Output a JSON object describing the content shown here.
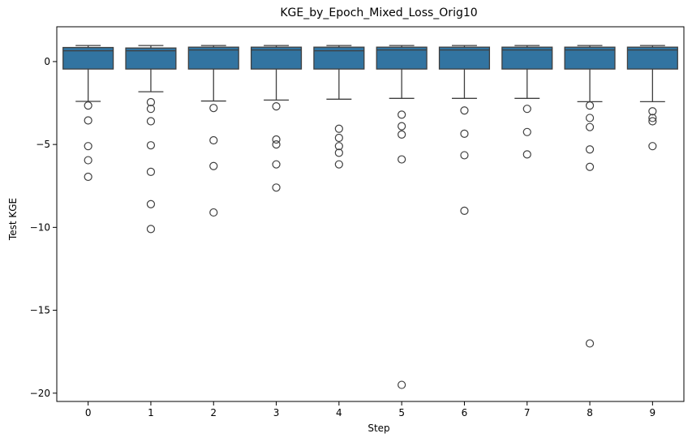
{
  "chart_data": {
    "type": "box",
    "title": "KGE_by_Epoch_Mixed_Loss_Orig10",
    "xlabel": "Step",
    "ylabel": "Test KGE",
    "categories": [
      "0",
      "1",
      "2",
      "3",
      "4",
      "5",
      "6",
      "7",
      "8",
      "9"
    ],
    "ylim": [
      -20.5,
      2.1
    ],
    "yticks": [
      {
        "value": 0,
        "label": "0"
      },
      {
        "value": -5,
        "label": "−5"
      },
      {
        "value": -10,
        "label": "−10"
      },
      {
        "value": -15,
        "label": "−15"
      },
      {
        "value": -20,
        "label": "−20"
      }
    ],
    "grid": false,
    "box_color": "#3274a1",
    "edge_color": "#3f3f3f",
    "boxes": [
      {
        "category": "0",
        "whisker_low": -2.4,
        "q1": -0.45,
        "median": 0.65,
        "q3": 0.85,
        "whisker_high": 0.97,
        "outliers": [
          -2.65,
          -3.55,
          -5.1,
          -5.95,
          -6.95
        ]
      },
      {
        "category": "1",
        "whisker_low": -1.82,
        "q1": -0.45,
        "median": 0.65,
        "q3": 0.82,
        "whisker_high": 0.97,
        "outliers": [
          -2.45,
          -2.85,
          -3.6,
          -5.05,
          -6.65,
          -8.6,
          -10.1
        ]
      },
      {
        "category": "2",
        "whisker_low": -2.38,
        "q1": -0.45,
        "median": 0.7,
        "q3": 0.87,
        "whisker_high": 0.97,
        "outliers": [
          -2.8,
          -4.75,
          -6.3,
          -9.1
        ]
      },
      {
        "category": "3",
        "whisker_low": -2.32,
        "q1": -0.45,
        "median": 0.7,
        "q3": 0.87,
        "whisker_high": 0.97,
        "outliers": [
          -2.7,
          -4.7,
          -5.0,
          -6.2,
          -7.6
        ]
      },
      {
        "category": "4",
        "whisker_low": -2.27,
        "q1": -0.45,
        "median": 0.65,
        "q3": 0.87,
        "whisker_high": 0.97,
        "outliers": [
          -4.05,
          -4.6,
          -5.1,
          -5.5,
          -6.2
        ]
      },
      {
        "category": "5",
        "whisker_low": -2.22,
        "q1": -0.45,
        "median": 0.7,
        "q3": 0.87,
        "whisker_high": 0.97,
        "outliers": [
          -3.2,
          -3.9,
          -4.4,
          -5.9,
          -19.5
        ]
      },
      {
        "category": "6",
        "whisker_low": -2.22,
        "q1": -0.45,
        "median": 0.7,
        "q3": 0.87,
        "whisker_high": 0.97,
        "outliers": [
          -2.95,
          -4.35,
          -5.65,
          -9.0
        ]
      },
      {
        "category": "7",
        "whisker_low": -2.22,
        "q1": -0.45,
        "median": 0.7,
        "q3": 0.87,
        "whisker_high": 0.97,
        "outliers": [
          -2.85,
          -4.25,
          -5.6
        ]
      },
      {
        "category": "8",
        "whisker_low": -2.42,
        "q1": -0.45,
        "median": 0.7,
        "q3": 0.87,
        "whisker_high": 0.97,
        "outliers": [
          -2.65,
          -3.4,
          -3.95,
          -5.3,
          -6.35,
          -17.0
        ]
      },
      {
        "category": "9",
        "whisker_low": -2.42,
        "q1": -0.45,
        "median": 0.7,
        "q3": 0.87,
        "whisker_high": 0.97,
        "outliers": [
          -3.0,
          -3.4,
          -3.6,
          -5.1
        ]
      }
    ]
  }
}
